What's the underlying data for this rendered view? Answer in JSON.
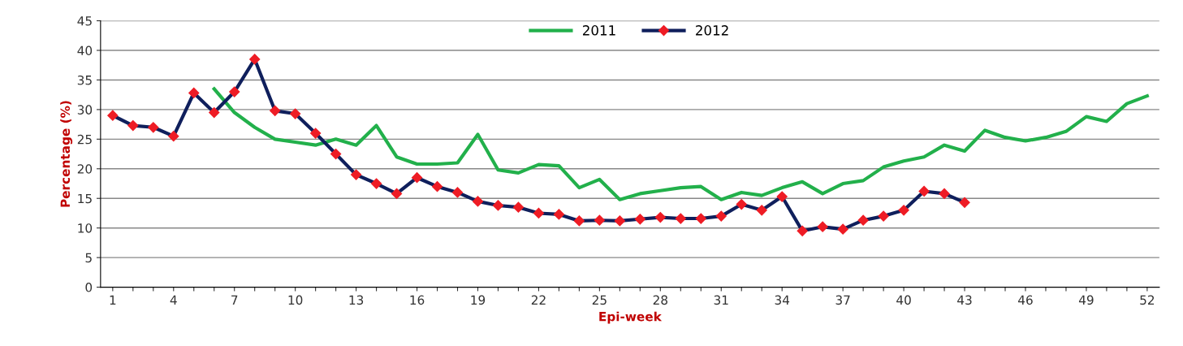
{
  "chart_data": {
    "type": "line",
    "xlabel": "Epi-week",
    "ylabel": "Percentage (%)",
    "categories": [
      "1",
      null,
      null,
      "4",
      null,
      null,
      "7",
      null,
      null,
      "10",
      null,
      null,
      "13",
      null,
      null,
      "16",
      null,
      null,
      "19",
      null,
      null,
      "22",
      null,
      null,
      "25",
      null,
      null,
      "28",
      null,
      null,
      "31",
      null,
      null,
      "34",
      null,
      null,
      "37",
      null,
      null,
      "40",
      null,
      null,
      "43",
      null,
      null,
      "46",
      null,
      null,
      "49",
      null,
      null,
      "52"
    ],
    "series": [
      {
        "name": "2011",
        "color": "#22b04b",
        "marker": "none",
        "values": [
          null,
          null,
          null,
          null,
          null,
          33.5,
          29.5,
          27,
          25,
          24.5,
          24,
          25,
          24,
          27.3,
          22,
          20.8,
          20.8,
          21,
          25.8,
          19.8,
          19.3,
          20.7,
          20.5,
          16.8,
          18.2,
          14.8,
          15.8,
          16.3,
          16.8,
          17,
          14.8,
          16,
          15.5,
          16.8,
          17.8,
          15.8,
          17.5,
          18,
          20.3,
          21.3,
          22,
          24,
          23,
          26.5,
          25.3,
          24.7,
          25.3,
          26.3,
          28.8,
          28,
          31,
          32.3
        ]
      },
      {
        "name": "2012",
        "color": "#0f1f5c",
        "marker": "diamond",
        "colors": [
          "#ee1c25",
          "#ee1c25",
          "#ee1c25",
          "#ee1c25",
          "#ee1c25",
          "#ee1c25",
          "#ee1c25",
          "#ee1c25",
          "#ee1c25",
          "#ee1c25",
          "#ee1c25",
          "#ee1c25",
          "#ee1c25",
          "#ee1c25",
          "#ee1c25",
          "#ee1c25",
          "#ee1c25",
          "#ee1c25",
          "#ee1c25",
          "#ee1c25",
          "#ee1c25",
          "#ee1c25",
          "#ee1c25",
          "#ee1c25",
          "#ee1c25",
          "#ee1c25",
          "#ee1c25",
          "#ee1c25",
          "#ee1c25",
          "#ee1c25",
          "#ee1c25",
          "#ee1c25",
          "#ee1c25",
          "#ee1c25",
          "#ee1c25",
          "#ee1c25",
          "#ee1c25",
          "#ee1c25",
          "#ee1c25",
          "#ee1c25",
          "#ee1c25",
          "#ee1c25",
          "#ee1c25",
          null,
          null,
          null,
          null,
          null,
          null,
          null,
          null,
          null
        ],
        "values": [
          29,
          27.3,
          27,
          25.5,
          32.8,
          29.5,
          33,
          38.5,
          29.8,
          29.3,
          26,
          22.5,
          19,
          17.5,
          15.8,
          18.5,
          17,
          16,
          14.5,
          13.8,
          13.5,
          12.5,
          12.3,
          11.2,
          11.3,
          11.2,
          11.5,
          11.8,
          11.6,
          11.6,
          12,
          14,
          13,
          15.3,
          9.5,
          10.2,
          9.8,
          11.3,
          12,
          13,
          16.2,
          15.8,
          14.3,
          null,
          null,
          null,
          null,
          null,
          null,
          null,
          null,
          null
        ]
      }
    ],
    "ylim": [
      0,
      45
    ],
    "yticks": [
      0,
      5,
      10,
      15,
      20,
      25,
      30,
      35,
      40,
      45
    ],
    "grid": "y",
    "legend": "top"
  }
}
